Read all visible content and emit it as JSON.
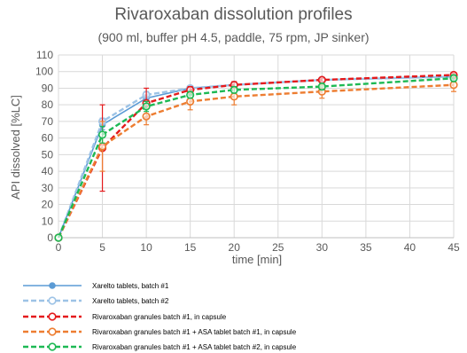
{
  "chart_data": {
    "type": "line",
    "title": "Rivaroxaban dissolution profiles",
    "subtitle": "(900 ml, buffer pH 4.5, paddle, 75 rpm, JP sinker)",
    "xlabel": "time [min]",
    "ylabel": "API dissolved [%LC]",
    "xlim": [
      0,
      45
    ],
    "ylim": [
      0,
      110
    ],
    "xticks": [
      0,
      5,
      10,
      15,
      20,
      25,
      30,
      35,
      40,
      45
    ],
    "yticks": [
      0,
      10,
      20,
      30,
      40,
      50,
      60,
      70,
      80,
      90,
      100,
      110
    ],
    "grid": true,
    "legend_position": "bottom",
    "x": [
      0,
      5,
      10,
      15,
      20,
      30,
      45
    ],
    "series": [
      {
        "name": "Xarelto tablets, batch #1",
        "color": "#5b9bd5",
        "dash": "solid",
        "marker": "filled-circle",
        "values": [
          0,
          68,
          84,
          90,
          92,
          95,
          97
        ],
        "err": [
          0,
          3,
          2,
          1,
          1,
          1,
          1
        ]
      },
      {
        "name": "Xarelto tablets, batch #2",
        "color": "#9dc3e6",
        "dash": "dashed",
        "marker": "open-circle",
        "values": [
          0,
          70,
          86,
          90,
          92,
          95,
          97
        ],
        "err": [
          0,
          2,
          2,
          1,
          1,
          1,
          1
        ]
      },
      {
        "name": "Rivaroxaban granules batch #1, in capsule",
        "color": "#e41a1c",
        "dash": "dashed",
        "marker": "open-circle",
        "values": [
          0,
          54,
          81,
          89,
          92,
          95,
          98
        ],
        "err": [
          0,
          26,
          9,
          2,
          2,
          1,
          1
        ]
      },
      {
        "name": "Rivaroxaban granules batch #1 + ASA tablet batch #1, in capsule",
        "color": "#ed7d31",
        "dash": "dashed",
        "marker": "open-circle",
        "values": [
          0,
          55,
          73,
          82,
          85,
          88,
          92
        ],
        "err": [
          0,
          15,
          5,
          5,
          5,
          4,
          4
        ]
      },
      {
        "name": "Rivaroxaban granules batch #1 + ASA tablet batch #2, in capsule",
        "color": "#1db954",
        "dash": "dashed",
        "marker": "open-circle",
        "values": [
          0,
          62,
          79,
          86,
          89,
          91,
          96
        ],
        "err": [
          0,
          5,
          3,
          2,
          2,
          2,
          2
        ]
      }
    ]
  }
}
